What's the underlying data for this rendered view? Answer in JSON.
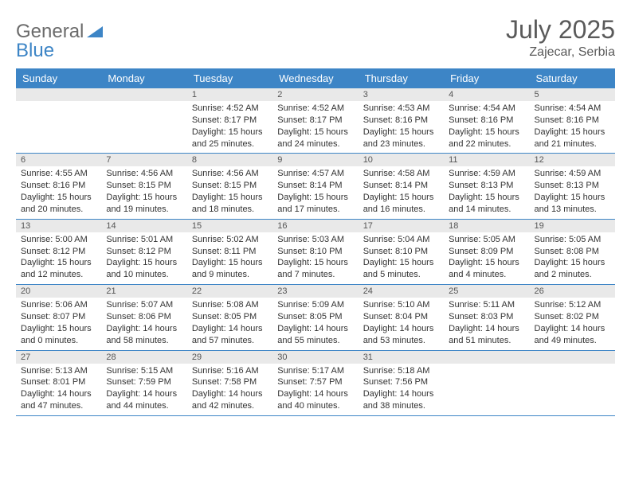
{
  "logo": {
    "part1": "General",
    "part2": "Blue"
  },
  "title": {
    "month": "July 2025",
    "location": "Zajecar, Serbia"
  },
  "colors": {
    "header_bg": "#3d85c6",
    "header_fg": "#ffffff",
    "daynum_bg": "#e9e9e9",
    "text": "#333333",
    "rule": "#3d85c6"
  },
  "daysOfWeek": [
    "Sunday",
    "Monday",
    "Tuesday",
    "Wednesday",
    "Thursday",
    "Friday",
    "Saturday"
  ],
  "weeks": [
    [
      {
        "n": "",
        "sr": "",
        "ss": "",
        "dl": ""
      },
      {
        "n": "",
        "sr": "",
        "ss": "",
        "dl": ""
      },
      {
        "n": "1",
        "sr": "4:52 AM",
        "ss": "8:17 PM",
        "dl": "15 hours and 25 minutes."
      },
      {
        "n": "2",
        "sr": "4:52 AM",
        "ss": "8:17 PM",
        "dl": "15 hours and 24 minutes."
      },
      {
        "n": "3",
        "sr": "4:53 AM",
        "ss": "8:16 PM",
        "dl": "15 hours and 23 minutes."
      },
      {
        "n": "4",
        "sr": "4:54 AM",
        "ss": "8:16 PM",
        "dl": "15 hours and 22 minutes."
      },
      {
        "n": "5",
        "sr": "4:54 AM",
        "ss": "8:16 PM",
        "dl": "15 hours and 21 minutes."
      }
    ],
    [
      {
        "n": "6",
        "sr": "4:55 AM",
        "ss": "8:16 PM",
        "dl": "15 hours and 20 minutes."
      },
      {
        "n": "7",
        "sr": "4:56 AM",
        "ss": "8:15 PM",
        "dl": "15 hours and 19 minutes."
      },
      {
        "n": "8",
        "sr": "4:56 AM",
        "ss": "8:15 PM",
        "dl": "15 hours and 18 minutes."
      },
      {
        "n": "9",
        "sr": "4:57 AM",
        "ss": "8:14 PM",
        "dl": "15 hours and 17 minutes."
      },
      {
        "n": "10",
        "sr": "4:58 AM",
        "ss": "8:14 PM",
        "dl": "15 hours and 16 minutes."
      },
      {
        "n": "11",
        "sr": "4:59 AM",
        "ss": "8:13 PM",
        "dl": "15 hours and 14 minutes."
      },
      {
        "n": "12",
        "sr": "4:59 AM",
        "ss": "8:13 PM",
        "dl": "15 hours and 13 minutes."
      }
    ],
    [
      {
        "n": "13",
        "sr": "5:00 AM",
        "ss": "8:12 PM",
        "dl": "15 hours and 12 minutes."
      },
      {
        "n": "14",
        "sr": "5:01 AM",
        "ss": "8:12 PM",
        "dl": "15 hours and 10 minutes."
      },
      {
        "n": "15",
        "sr": "5:02 AM",
        "ss": "8:11 PM",
        "dl": "15 hours and 9 minutes."
      },
      {
        "n": "16",
        "sr": "5:03 AM",
        "ss": "8:10 PM",
        "dl": "15 hours and 7 minutes."
      },
      {
        "n": "17",
        "sr": "5:04 AM",
        "ss": "8:10 PM",
        "dl": "15 hours and 5 minutes."
      },
      {
        "n": "18",
        "sr": "5:05 AM",
        "ss": "8:09 PM",
        "dl": "15 hours and 4 minutes."
      },
      {
        "n": "19",
        "sr": "5:05 AM",
        "ss": "8:08 PM",
        "dl": "15 hours and 2 minutes."
      }
    ],
    [
      {
        "n": "20",
        "sr": "5:06 AM",
        "ss": "8:07 PM",
        "dl": "15 hours and 0 minutes."
      },
      {
        "n": "21",
        "sr": "5:07 AM",
        "ss": "8:06 PM",
        "dl": "14 hours and 58 minutes."
      },
      {
        "n": "22",
        "sr": "5:08 AM",
        "ss": "8:05 PM",
        "dl": "14 hours and 57 minutes."
      },
      {
        "n": "23",
        "sr": "5:09 AM",
        "ss": "8:05 PM",
        "dl": "14 hours and 55 minutes."
      },
      {
        "n": "24",
        "sr": "5:10 AM",
        "ss": "8:04 PM",
        "dl": "14 hours and 53 minutes."
      },
      {
        "n": "25",
        "sr": "5:11 AM",
        "ss": "8:03 PM",
        "dl": "14 hours and 51 minutes."
      },
      {
        "n": "26",
        "sr": "5:12 AM",
        "ss": "8:02 PM",
        "dl": "14 hours and 49 minutes."
      }
    ],
    [
      {
        "n": "27",
        "sr": "5:13 AM",
        "ss": "8:01 PM",
        "dl": "14 hours and 47 minutes."
      },
      {
        "n": "28",
        "sr": "5:15 AM",
        "ss": "7:59 PM",
        "dl": "14 hours and 44 minutes."
      },
      {
        "n": "29",
        "sr": "5:16 AM",
        "ss": "7:58 PM",
        "dl": "14 hours and 42 minutes."
      },
      {
        "n": "30",
        "sr": "5:17 AM",
        "ss": "7:57 PM",
        "dl": "14 hours and 40 minutes."
      },
      {
        "n": "31",
        "sr": "5:18 AM",
        "ss": "7:56 PM",
        "dl": "14 hours and 38 minutes."
      },
      {
        "n": "",
        "sr": "",
        "ss": "",
        "dl": ""
      },
      {
        "n": "",
        "sr": "",
        "ss": "",
        "dl": ""
      }
    ]
  ],
  "labels": {
    "sunrise": "Sunrise: ",
    "sunset": "Sunset: ",
    "daylight": "Daylight: "
  }
}
